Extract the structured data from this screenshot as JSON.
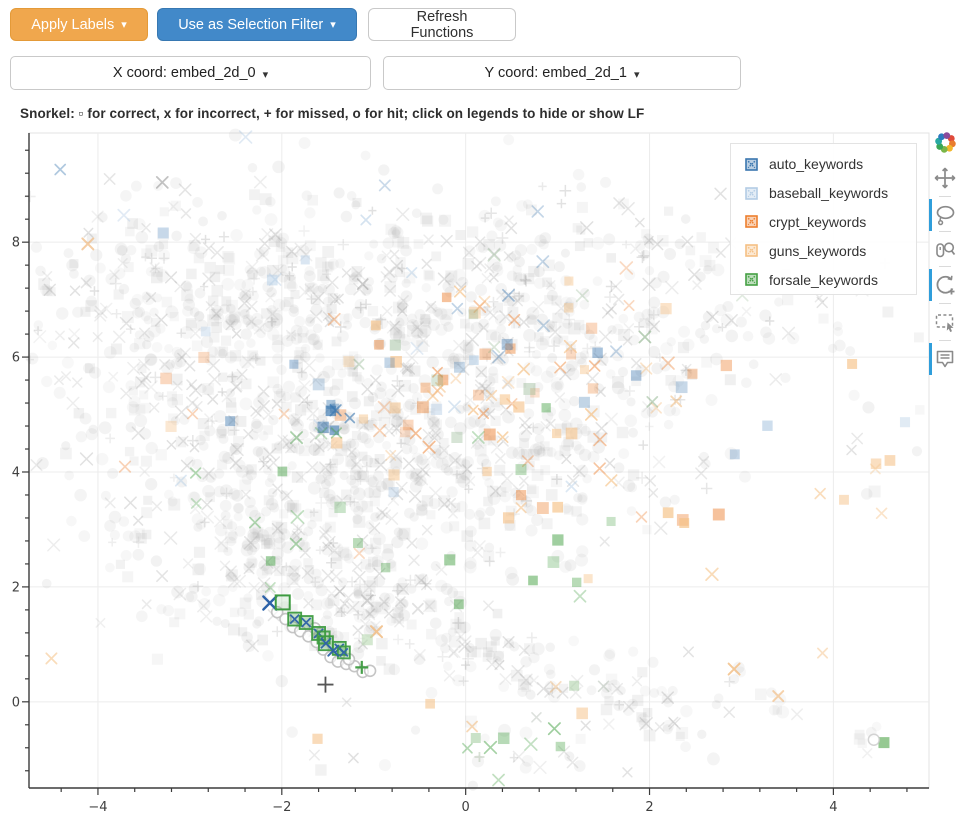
{
  "header": {
    "apply_labels_button": "Apply Labels",
    "selection_filter_button": "Use as Selection Filter",
    "refresh_button": "Refresh Functions",
    "dropdown_caret": "▾",
    "x_coord_selector": "X coord: embed_2d_0",
    "y_coord_selector": "Y coord: embed_2d_1"
  },
  "colors": {
    "warning-btn": "#F0A74D",
    "warning-btn-border": "#E49A38",
    "primary-btn": "#4289C9",
    "primary-btn-border": "#3778B2",
    "active-tool": "#2F9EDB",
    "title-color": "#2E2E2E",
    "axis": "#3B3B3B",
    "grid": "#ECECEC",
    "tick-label": "#3F3F3F"
  },
  "bokeh_toolbar": {
    "tools": [
      {
        "name": "pan",
        "active": false
      },
      {
        "name": "lasso-select",
        "active": true
      },
      {
        "name": "wheel-zoom",
        "active": false
      },
      {
        "name": "scroll-zoom",
        "active": true
      },
      {
        "name": "box-select",
        "active": false
      },
      {
        "name": "hover",
        "active": true
      }
    ]
  },
  "chart_data": {
    "type": "scatter",
    "title": "Snorkel: ▫ for correct, x for incorrect, + for missed, o for hit; click on legends to hide or show LF",
    "xlim": [
      -4.75,
      5.04
    ],
    "ylim": [
      -1.5,
      9.9
    ],
    "x_ticks": [
      -4,
      -2,
      0,
      2,
      4
    ],
    "y_ticks": [
      0,
      2,
      4,
      6,
      8
    ],
    "minor_tick_step": 0.4,
    "grid": true,
    "legend_position": "top_right",
    "legend": [
      {
        "label": "auto_keywords",
        "color": "#3A76AF"
      },
      {
        "label": "baseball_keywords",
        "color": "#B3CCE4"
      },
      {
        "label": "crypt_keywords",
        "color": "#ED7F2E"
      },
      {
        "label": "guns_keywords",
        "color": "#F5C084"
      },
      {
        "label": "forsale_keywords",
        "color": "#44A043"
      }
    ],
    "marker_semantics": {
      "square": "correct",
      "x": "incorrect",
      "plus": "missed",
      "circle": "hit"
    },
    "seed": 1337,
    "background_clusters": [
      {
        "n": 480,
        "cx": -2.3,
        "cy": 7.0,
        "sx": 1.3,
        "sy": 0.95
      },
      {
        "n": 320,
        "cx": 0.55,
        "cy": 6.95,
        "sx": 1.25,
        "sy": 0.95
      },
      {
        "n": 520,
        "cx": -1.55,
        "cy": 4.15,
        "sx": 1.45,
        "sy": 1.1
      },
      {
        "n": 200,
        "cx": 0.6,
        "cy": 4.55,
        "sx": 1.1,
        "sy": 0.85
      },
      {
        "n": 200,
        "cx": -1.25,
        "cy": 1.75,
        "sx": 0.85,
        "sy": 0.55
      },
      {
        "n": 115,
        "line": [
          -0.35,
          1.05,
          2.3,
          -0.15
        ],
        "jit": 0.28
      },
      {
        "n": 45,
        "cx": 2.3,
        "cy": 6.3,
        "sx": 0.55,
        "sy": 0.95
      },
      {
        "n": 28,
        "cx": 0.35,
        "cy": -0.85,
        "sx": 1.4,
        "sy": 0.3
      },
      {
        "n": 11,
        "line": [
          2.9,
          0.55,
          3.55,
          -0.35
        ],
        "jit": 0.09
      },
      {
        "n": 16,
        "cx": 3.9,
        "cy": 6.75,
        "sx": 0.5,
        "sy": 0.45
      },
      {
        "n": 10,
        "cx": 4.35,
        "cy": 5.3,
        "sx": 0.3,
        "sy": 1.2
      },
      {
        "n": 45,
        "cx": -3.55,
        "cy": 5.6,
        "sx": 0.6,
        "sy": 1.1
      },
      {
        "n": 90,
        "cx": -2.4,
        "cy": 2.9,
        "sx": 0.9,
        "sy": 0.6
      },
      {
        "n": 6,
        "cx": 4.5,
        "cy": -0.7,
        "sx": 0.18,
        "sy": 0.12
      }
    ],
    "sprinkle_clusters": [
      {
        "n": 34,
        "cx": 0.5,
        "cy": 5.3,
        "sx": 1.1,
        "sy": 1.2,
        "color": "#ED7F2E",
        "alpha": 0.4
      },
      {
        "n": 14,
        "cx": -0.5,
        "cy": 5.0,
        "sx": 2.0,
        "sy": 1.8,
        "color": "#ED7F2E",
        "alpha": 0.3
      },
      {
        "n": 26,
        "cx": 0.75,
        "cy": 5.3,
        "sx": 0.9,
        "sy": 1.3,
        "color": "#F5C084",
        "alpha": 0.55
      },
      {
        "n": 22,
        "cx": 0.0,
        "cy": 3.6,
        "sx": 2.4,
        "sy": 2.0,
        "color": "#F5C084",
        "alpha": 0.5
      },
      {
        "n": 8,
        "cx": 4.3,
        "cy": 4.6,
        "sx": 0.35,
        "sy": 1.5,
        "color": "#F5C084",
        "alpha": 0.5
      },
      {
        "n": 20,
        "cx": -0.7,
        "cy": 6.0,
        "sx": 1.7,
        "sy": 1.3,
        "color": "#3A76AF",
        "alpha": 0.35
      },
      {
        "n": 7,
        "cx": -1.42,
        "cy": 4.95,
        "sx": 0.14,
        "sy": 0.16,
        "color": "#3A76AF",
        "alpha": 0.55
      },
      {
        "n": 20,
        "cx": -1.6,
        "cy": 6.3,
        "sx": 1.9,
        "sy": 1.5,
        "color": "#B3CCE4",
        "alpha": 0.5
      },
      {
        "n": 26,
        "cx": -1.1,
        "cy": 2.9,
        "sx": 1.7,
        "sy": 1.5,
        "color": "#44A043",
        "alpha": 0.4
      },
      {
        "n": 7,
        "cx": 0.55,
        "cy": -0.55,
        "sx": 0.5,
        "sy": 0.35,
        "color": "#44A043",
        "alpha": 0.4
      },
      {
        "n": 10,
        "cx": 0.4,
        "cy": 6.3,
        "sx": 1.6,
        "sy": 1.0,
        "color": "#7FA87C",
        "alpha": 0.3
      }
    ],
    "hit_markers": {
      "style": {
        "r": 5.5,
        "stroke": "#BFBFBF",
        "width": 1.6,
        "fill": "#FDFDFD"
      },
      "points": [
        [
          -2.05,
          1.56
        ],
        [
          -1.96,
          1.44
        ],
        [
          -1.88,
          1.3
        ],
        [
          -1.8,
          1.23
        ],
        [
          -1.71,
          1.14
        ],
        [
          -1.64,
          1.28
        ],
        [
          -1.62,
          1.04
        ],
        [
          -1.55,
          0.91
        ],
        [
          -1.47,
          0.78
        ],
        [
          -1.39,
          0.7
        ],
        [
          -1.3,
          0.66
        ],
        [
          -1.21,
          0.62
        ],
        [
          -1.12,
          0.52
        ],
        [
          -1.04,
          0.54
        ],
        [
          -1.58,
          1.19
        ],
        [
          -1.27,
          0.74
        ]
      ]
    },
    "foreground_points": [
      {
        "m": "x",
        "x": -3.3,
        "y": 9.04,
        "s": 11,
        "c": "#8F8F8F",
        "w": 1.8,
        "a": 0.55
      },
      {
        "m": "x",
        "x": -1.12,
        "y": 7.27,
        "s": 10,
        "c": "#8F8F8F",
        "w": 1.8,
        "a": 0.45
      },
      {
        "m": "square",
        "x": -3.29,
        "y": 8.16,
        "s": 11,
        "c": "#B3CCE4",
        "a": 0.7
      },
      {
        "m": "x",
        "x": -4.11,
        "y": 7.97,
        "s": 11,
        "c": "#F0B87E",
        "w": 2,
        "a": 0.7
      },
      {
        "m": "x",
        "x": 1.95,
        "y": 6.35,
        "s": 11,
        "c": "#7FA87C",
        "w": 1.8,
        "a": 0.55
      },
      {
        "m": "x",
        "x": 2.03,
        "y": 5.22,
        "s": 10,
        "c": "#7FA87C",
        "w": 1.8,
        "a": 0.45
      },
      {
        "m": "x",
        "x": 2.29,
        "y": 5.23,
        "s": 10,
        "c": "#F2BF87",
        "w": 1.8,
        "a": 0.6
      },
      {
        "m": "x",
        "x": -1.07,
        "y": 1.76,
        "s": 11,
        "c": "#9A9A9A",
        "w": 1.8,
        "a": 0.4
      },
      {
        "m": "x",
        "x": -0.52,
        "y": 1.62,
        "s": 10,
        "c": "#9A9A9A",
        "w": 1.8,
        "a": 0.3
      },
      {
        "m": "x",
        "x": -0.97,
        "y": 1.22,
        "s": 11,
        "c": "#F2BF87",
        "w": 2,
        "a": 0.9
      },
      {
        "m": "square",
        "x": -1.07,
        "y": 1.08,
        "s": 11,
        "c": "#B7D8B0",
        "a": 0.6
      },
      {
        "m": "x",
        "x": 2.92,
        "y": 0.57,
        "s": 11,
        "c": "#F2BF87",
        "w": 2,
        "a": 0.85
      },
      {
        "m": "x",
        "x": 3.4,
        "y": 0.1,
        "s": 10,
        "c": "#F2BF87",
        "w": 2,
        "a": 0.7
      },
      {
        "m": "square",
        "x": 4.55,
        "y": -0.71,
        "s": 11,
        "c": "#7CBB77",
        "a": 0.8
      },
      {
        "m": "circle_open",
        "x": 4.44,
        "y": -0.66,
        "s": 11,
        "c": "#C9C9C9",
        "w": 1.5,
        "a": 0.8
      },
      {
        "m": "x",
        "x": 0.07,
        "y": -0.43,
        "s": 10,
        "c": "#F2BF87",
        "w": 1.8,
        "a": 0.6
      },
      {
        "m": "square",
        "x": 0.11,
        "y": -0.63,
        "s": 10,
        "c": "#9FCA9A",
        "a": 0.55
      },
      {
        "m": "plus",
        "x": 0.15,
        "y": -0.96,
        "s": 10,
        "c": "#B9C9B5",
        "w": 1.8,
        "a": 0.55
      },
      {
        "m": "x",
        "x": 0.77,
        "y": -0.27,
        "s": 9,
        "c": "#A9B5A9",
        "w": 1.6,
        "a": 0.4
      },
      {
        "m": "square",
        "x": 1.18,
        "y": 0.28,
        "s": 10,
        "c": "#9FCA9A",
        "a": 0.5
      },
      {
        "m": "x",
        "x": 1.5,
        "y": 0.27,
        "s": 10,
        "c": "#A9B5A9",
        "w": 1.6,
        "a": 0.45
      },
      {
        "m": "x",
        "x": 0.98,
        "y": 0.26,
        "s": 10,
        "c": "#F2BF87",
        "w": 1.8,
        "a": 0.5
      },
      {
        "m": "x",
        "x": -2.13,
        "y": 1.72,
        "s": 13,
        "c": "#2D62A8",
        "w": 2.4,
        "a": 1
      },
      {
        "m": "square_open",
        "x": -1.99,
        "y": 1.73,
        "s": 14,
        "c": "#3D9B40",
        "w": 2,
        "a": 1
      },
      {
        "m": "square_x",
        "x": -1.86,
        "y": 1.44,
        "s": 13,
        "c": "#3D9B40",
        "xc": "#2D62A8",
        "a": 0.95
      },
      {
        "m": "square_x",
        "x": -1.735,
        "y": 1.38,
        "s": 13,
        "c": "#3D9B40",
        "xc": "#2D62A8",
        "a": 0.95
      },
      {
        "m": "square_x",
        "x": -1.6,
        "y": 1.19,
        "s": 13,
        "c": "#3D9B40",
        "xc": "#2D62A8",
        "a": 0.95
      },
      {
        "m": "square_open",
        "x": -1.545,
        "y": 1.12,
        "s": 12,
        "c": "#3D9B40",
        "w": 2,
        "a": 0.9
      },
      {
        "m": "square_x",
        "x": -1.52,
        "y": 1.02,
        "s": 14,
        "c": "#3D9B40",
        "xc": "#2D62A8",
        "a": 0.95
      },
      {
        "m": "square_x",
        "x": -1.375,
        "y": 0.93,
        "s": 13,
        "c": "#3D9B40",
        "xc": "#2D62A8",
        "a": 0.95
      },
      {
        "m": "square_x",
        "x": -1.325,
        "y": 0.86,
        "s": 12,
        "c": "#3D9B40",
        "xc": "#2D62A8",
        "a": 0.9
      },
      {
        "m": "x",
        "x": -1.44,
        "y": 0.89,
        "s": 10,
        "c": "#2D62A8",
        "w": 2,
        "a": 0.95
      },
      {
        "m": "plus",
        "x": -1.13,
        "y": 0.6,
        "s": 13,
        "c": "#3D9B40",
        "w": 2.2,
        "a": 0.95
      },
      {
        "m": "plus",
        "x": -1.525,
        "y": 0.3,
        "s": 16,
        "c": "#4D4D4D",
        "w": 1.8,
        "a": 0.95
      }
    ]
  }
}
